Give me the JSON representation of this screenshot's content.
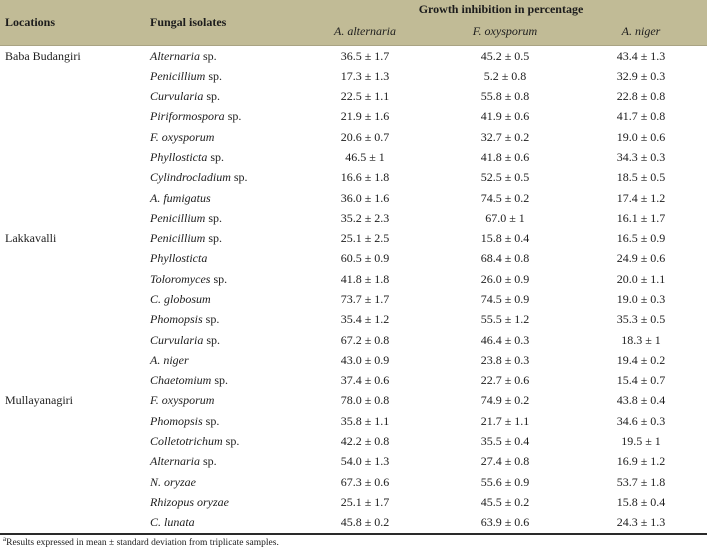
{
  "colors": {
    "header_bg": "#c1bb96",
    "text": "#1c1c1c",
    "bottom_rule": "#2a2a2a",
    "body_bg": "#ffffff"
  },
  "chart_data": {
    "type": "table",
    "headers": {
      "col1": "Locations",
      "col2": "Fungal isolates",
      "group": "Growth inhibition in percentage",
      "sub": [
        "A. alternaria",
        "F. oxysporum",
        "A. niger"
      ]
    },
    "groups": [
      {
        "location": "Baba Budangiri",
        "rows": [
          {
            "name": "Alternaria",
            "suffix": " sp.",
            "values": [
              "36.5 ± 1.7",
              "45.2 ± 0.5",
              "43.4 ± 1.3"
            ]
          },
          {
            "name": "Penicillium",
            "suffix": " sp.",
            "values": [
              "17.3 ± 1.3",
              "5.2 ± 0.8",
              "32.9 ± 0.3"
            ]
          },
          {
            "name": "Curvularia",
            "suffix": " sp.",
            "values": [
              "22.5 ± 1.1",
              "55.8 ± 0.8",
              "22.8 ± 0.8"
            ]
          },
          {
            "name": "Piriformospora",
            "suffix": " sp.",
            "values": [
              "21.9 ± 1.6",
              "41.9 ± 0.6",
              "41.7 ± 0.8"
            ]
          },
          {
            "name": "F. oxysporum",
            "suffix": "",
            "values": [
              "20.6 ± 0.7",
              "32.7 ± 0.2",
              "19.0 ± 0.6"
            ]
          },
          {
            "name": "Phyllosticta",
            "suffix": " sp.",
            "values": [
              "46.5 ± 1",
              "41.8 ± 0.6",
              "34.3 ± 0.3"
            ]
          },
          {
            "name": "Cylindrocladium",
            "suffix": " sp.",
            "values": [
              "16.6 ± 1.8",
              "52.5 ± 0.5",
              "18.5 ± 0.5"
            ]
          },
          {
            "name": "A. fumigatus",
            "suffix": "",
            "values": [
              "36.0 ± 1.6",
              "74.5 ± 0.2",
              "17.4 ± 1.2"
            ]
          },
          {
            "name": "Penicillium",
            "suffix": " sp.",
            "values": [
              "35.2 ± 2.3",
              "67.0 ± 1",
              "16.1 ± 1.7"
            ]
          }
        ]
      },
      {
        "location": "Lakkavalli",
        "rows": [
          {
            "name": "Penicillium",
            "suffix": " sp.",
            "values": [
              "25.1 ± 2.5",
              "15.8 ± 0.4",
              "16.5 ± 0.9"
            ]
          },
          {
            "name": "Phyllosticta",
            "suffix": "",
            "values": [
              "60.5 ± 0.9",
              "68.4 ± 0.8",
              "24.9 ± 0.6"
            ]
          },
          {
            "name": "Toloromyces",
            "suffix": " sp.",
            "values": [
              "41.8 ± 1.8",
              "26.0 ± 0.9",
              "20.0 ± 1.1"
            ]
          },
          {
            "name": "C. globosum",
            "suffix": "",
            "values": [
              "73.7 ± 1.7",
              "74.5 ± 0.9",
              "19.0 ± 0.3"
            ]
          },
          {
            "name": "Phomopsis",
            "suffix": " sp.",
            "values": [
              "35.4 ± 1.2",
              "55.5 ± 1.2",
              "35.3 ± 0.5"
            ]
          },
          {
            "name": "Curvularia",
            "suffix": " sp.",
            "values": [
              "67.2 ± 0.8",
              "46.4 ± 0.3",
              "18.3 ± 1"
            ]
          },
          {
            "name": "A. niger",
            "suffix": "",
            "values": [
              "43.0 ± 0.9",
              "23.8 ± 0.3",
              "19.4 ± 0.2"
            ]
          },
          {
            "name": "Chaetomium",
            "suffix": " sp.",
            "values": [
              "37.4 ± 0.6",
              "22.7 ± 0.6",
              "15.4 ± 0.7"
            ]
          }
        ]
      },
      {
        "location": "Mullayanagiri",
        "rows": [
          {
            "name": "F. oxysporum",
            "suffix": "",
            "values": [
              "78.0 ± 0.8",
              "74.9 ± 0.2",
              "43.8 ± 0.4"
            ]
          },
          {
            "name": "Phomopsis",
            "suffix": " sp.",
            "values": [
              "35.8 ± 1.1",
              "21.7 ± 1.1",
              "34.6 ± 0.3"
            ]
          },
          {
            "name": "Colletotrichum",
            "suffix": " sp.",
            "values": [
              "42.2 ± 0.8",
              "35.5 ± 0.4",
              "19.5 ± 1"
            ]
          },
          {
            "name": "Alternaria",
            "suffix": " sp.",
            "values": [
              "54.0 ± 1.3",
              "27.4 ± 0.8",
              "16.9 ± 1.2"
            ]
          },
          {
            "name": "N. oryzae",
            "suffix": "",
            "values": [
              "67.3 ± 0.6",
              "55.6 ± 0.9",
              "53.7 ± 1.8"
            ]
          },
          {
            "name": "Rhizopus oryzae",
            "suffix": "",
            "values": [
              "25.1 ± 1.7",
              "45.5 ± 0.2",
              "15.8 ± 0.4"
            ]
          },
          {
            "name": "C. lunata",
            "suffix": "",
            "values": [
              "45.8 ± 0.2",
              "63.9 ± 0.6",
              "24.3 ± 1.3"
            ]
          }
        ]
      }
    ],
    "footnote": {
      "superscript": "a",
      "text": "Results expressed in mean ± standard deviation from triplicate samples."
    }
  }
}
